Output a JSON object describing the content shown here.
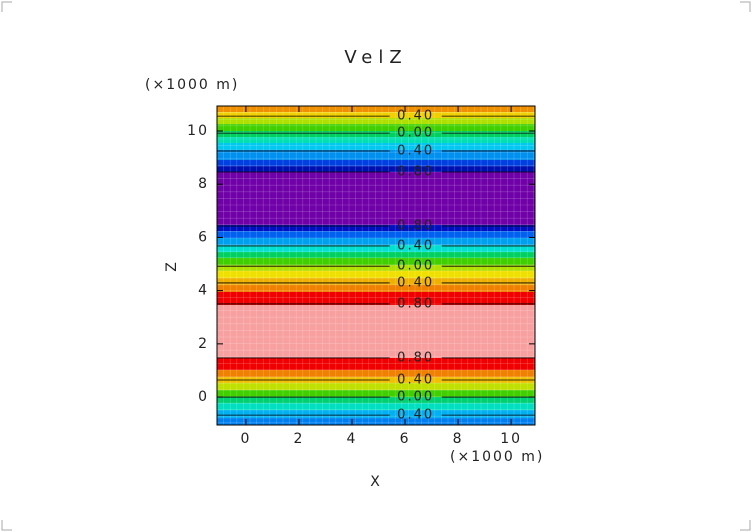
{
  "chart_data": {
    "type": "contour",
    "title": "VelZ",
    "x_label": "X",
    "y_label": "Z",
    "x_unit": "(×1000 m)",
    "y_unit": "(×1000 m)",
    "xlim": [
      -1.09,
      10.9
    ],
    "ylim": [
      -1.05,
      10.94
    ],
    "xticks": [
      0,
      2,
      4,
      6,
      8,
      10
    ],
    "yticks": [
      0,
      2,
      4,
      6,
      8,
      10
    ],
    "bands": [
      {
        "from": 10.71,
        "to": 10.94,
        "color": "#f09000"
      },
      {
        "from": 10.49,
        "to": 10.71,
        "color": "#f0d000"
      },
      {
        "from": 10.26,
        "to": 10.49,
        "color": "#b0e000"
      },
      {
        "from": 10.0,
        "to": 10.26,
        "color": "#40d000"
      },
      {
        "from": 9.77,
        "to": 10.0,
        "color": "#00d060"
      },
      {
        "from": 9.55,
        "to": 9.77,
        "color": "#00e0b0"
      },
      {
        "from": 9.29,
        "to": 9.55,
        "color": "#00c8f0"
      },
      {
        "from": 8.91,
        "to": 9.29,
        "color": "#0090f0"
      },
      {
        "from": 8.68,
        "to": 8.91,
        "color": "#0040e0"
      },
      {
        "from": 8.46,
        "to": 8.68,
        "color": "#0010b0"
      },
      {
        "from": 6.47,
        "to": 8.46,
        "color": "#7000a8"
      },
      {
        "from": 6.24,
        "to": 6.47,
        "color": "#0010c0"
      },
      {
        "from": 5.98,
        "to": 6.24,
        "color": "#0060f0"
      },
      {
        "from": 5.71,
        "to": 5.98,
        "color": "#00a0f0"
      },
      {
        "from": 5.45,
        "to": 5.71,
        "color": "#00e0d0"
      },
      {
        "from": 5.23,
        "to": 5.45,
        "color": "#00d060"
      },
      {
        "from": 4.96,
        "to": 5.23,
        "color": "#40d000"
      },
      {
        "from": 4.74,
        "to": 4.96,
        "color": "#b0e000"
      },
      {
        "from": 4.47,
        "to": 4.74,
        "color": "#f0e000"
      },
      {
        "from": 4.21,
        "to": 4.47,
        "color": "#f0b000"
      },
      {
        "from": 3.95,
        "to": 4.21,
        "color": "#f08000"
      },
      {
        "from": 3.46,
        "to": 3.95,
        "color": "#f00000"
      },
      {
        "from": 1.47,
        "to": 3.46,
        "color": "#f8a0a0"
      },
      {
        "from": 1.02,
        "to": 1.47,
        "color": "#f00000"
      },
      {
        "from": 0.75,
        "to": 1.02,
        "color": "#f08000"
      },
      {
        "from": 0.53,
        "to": 0.75,
        "color": "#f0c000"
      },
      {
        "from": 0.26,
        "to": 0.53,
        "color": "#c0e000"
      },
      {
        "from": 0,
        "to": 0.26,
        "color": "#40d000"
      },
      {
        "from": -0.23,
        "to": 0,
        "color": "#00d070"
      },
      {
        "from": -0.49,
        "to": -0.23,
        "color": "#00e0c0"
      },
      {
        "from": -0.79,
        "to": -0.49,
        "color": "#00b0f0"
      },
      {
        "from": -1.05,
        "to": -0.79,
        "color": "#0080f0"
      }
    ],
    "contours": [
      {
        "z": 10.56,
        "label": "0.40"
      },
      {
        "z": 9.92,
        "label": "0.00"
      },
      {
        "z": 9.25,
        "label": "0.40"
      },
      {
        "z": 8.46,
        "label": "0.80"
      },
      {
        "z": 6.43,
        "label": "0.80"
      },
      {
        "z": 5.68,
        "label": "0.40"
      },
      {
        "z": 4.92,
        "label": "0.00"
      },
      {
        "z": 4.29,
        "label": "0.40"
      },
      {
        "z": 3.5,
        "label": "0.80"
      },
      {
        "z": 1.47,
        "label": "0.80"
      },
      {
        "z": 0.64,
        "label": "0.40"
      },
      {
        "z": 0,
        "label": "0.00"
      },
      {
        "z": -0.68,
        "label": "0.40"
      }
    ],
    "label_x": 6.4
  }
}
